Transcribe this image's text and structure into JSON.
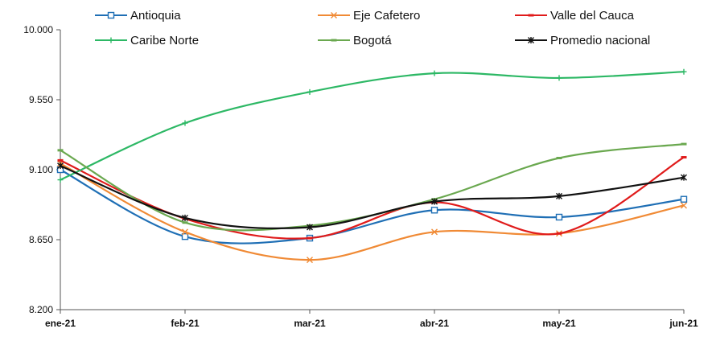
{
  "chart_data": {
    "type": "line",
    "title": "",
    "xlabel": "",
    "ylabel": "",
    "categories": [
      "ene-21",
      "feb-21",
      "mar-21",
      "abr-21",
      "may-21",
      "jun-21"
    ],
    "ylim": [
      8200,
      10000
    ],
    "yticks": [
      8200,
      8650,
      9100,
      9550,
      10000
    ],
    "ytick_labels": [
      "8.200",
      "8.650",
      "9.100",
      "9.550",
      "10.000"
    ],
    "grid": false,
    "legend_position": "top",
    "series": [
      {
        "name": "Antioquia",
        "color": "#1f6fb5",
        "marker": "square",
        "values": [
          9100,
          8670,
          8660,
          8840,
          8795,
          8910
        ]
      },
      {
        "name": "Eje Cafetero",
        "color": "#f08a35",
        "marker": "x",
        "values": [
          9140,
          8700,
          8520,
          8700,
          8690,
          8870
        ]
      },
      {
        "name": "Valle del Cauca",
        "color": "#e01b1b",
        "marker": "dash",
        "values": [
          9160,
          8785,
          8660,
          8890,
          8690,
          9180
        ]
      },
      {
        "name": "Caribe Norte",
        "color": "#2db865",
        "marker": "plus",
        "values": [
          9035,
          9400,
          9600,
          9720,
          9690,
          9730
        ]
      },
      {
        "name": "Bogotá",
        "color": "#6aa84f",
        "marker": "dash",
        "values": [
          9225,
          8760,
          8740,
          8910,
          9175,
          9265
        ]
      },
      {
        "name": "Promedio nacional",
        "color": "#111111",
        "marker": "asterisk",
        "values": [
          9125,
          8790,
          8730,
          8895,
          8930,
          9050
        ]
      }
    ]
  }
}
